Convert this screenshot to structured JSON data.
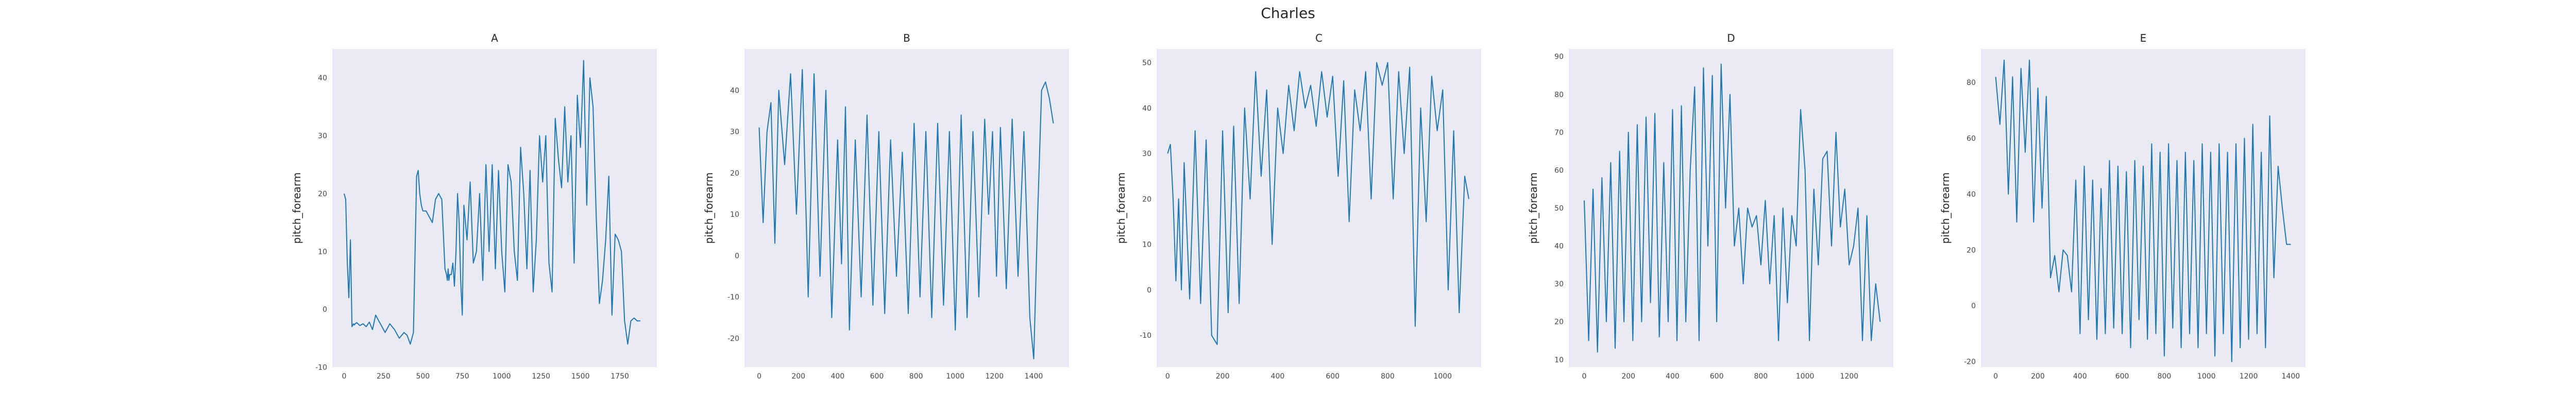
{
  "suptitle": "Charles",
  "colors": {
    "background": "#eaeaf2",
    "line": "#1f77b4",
    "text": "#262626"
  },
  "chart_data": [
    {
      "type": "line",
      "title": "A",
      "xlabel": "",
      "ylabel": "pitch_forearm",
      "xlim": [
        -75,
        1985
      ],
      "ylim": [
        -10,
        45
      ],
      "grid": false,
      "xticks": [
        0,
        250,
        500,
        750,
        1000,
        1250,
        1500,
        1750
      ],
      "yticks": [
        -10,
        0,
        10,
        20,
        30,
        40
      ],
      "series": [
        {
          "x": [
            0,
            10,
            20,
            30,
            40,
            50,
            60,
            65,
            70,
            80,
            100,
            120,
            140,
            160,
            180,
            200,
            230,
            260,
            290,
            320,
            350,
            380,
            400,
            420,
            440,
            460,
            470,
            480,
            490,
            500,
            520,
            540,
            560,
            580,
            600,
            620,
            640,
            650,
            655,
            660,
            665,
            670,
            680,
            690,
            700,
            710,
            720,
            730,
            740,
            750,
            760,
            780,
            800,
            820,
            840,
            860,
            880,
            900,
            920,
            940,
            960,
            980,
            1000,
            1020,
            1040,
            1060,
            1080,
            1100,
            1120,
            1140,
            1160,
            1180,
            1200,
            1220,
            1240,
            1260,
            1280,
            1300,
            1320,
            1340,
            1360,
            1380,
            1400,
            1420,
            1440,
            1460,
            1480,
            1500,
            1520,
            1540,
            1560,
            1580,
            1600,
            1620,
            1640,
            1660,
            1680,
            1700,
            1720,
            1740,
            1760,
            1780,
            1800,
            1820,
            1840,
            1860,
            1880
          ],
          "y": [
            20,
            19,
            8,
            2,
            12,
            -3,
            -2.5,
            -2.7,
            -2.5,
            -2.3,
            -2.8,
            -2.5,
            -3,
            -2.2,
            -3.5,
            -1,
            -2.5,
            -4,
            -2.5,
            -3.5,
            -5,
            -4,
            -4.5,
            -6,
            -4,
            23,
            24,
            20,
            18,
            17,
            17,
            16,
            15,
            19,
            20,
            19,
            7,
            6,
            5,
            7,
            5,
            6,
            6,
            8,
            4,
            10,
            20,
            15,
            5,
            -1,
            18,
            12,
            22,
            8,
            10,
            20,
            5,
            25,
            10,
            25,
            7,
            24,
            10,
            3,
            25,
            22,
            10,
            5,
            28,
            20,
            7,
            24,
            3,
            12,
            30,
            22,
            30,
            8,
            3,
            33,
            26,
            21,
            35,
            22,
            30,
            8,
            37,
            28,
            43,
            18,
            40,
            35,
            16,
            1,
            5,
            12,
            23,
            -1,
            13,
            12,
            10,
            -2,
            -6,
            -2,
            -1.5,
            -2,
            -2
          ]
        }
      ]
    },
    {
      "type": "line",
      "title": "B",
      "xlabel": "",
      "ylabel": "pitch_forearm",
      "xlim": [
        -75,
        1580
      ],
      "ylim": [
        -27,
        50
      ],
      "grid": false,
      "xticks": [
        0,
        200,
        400,
        600,
        800,
        1000,
        1200,
        1400
      ],
      "yticks": [
        -20,
        -10,
        0,
        10,
        20,
        30,
        40
      ],
      "series": [
        {
          "x": [
            0,
            20,
            40,
            60,
            80,
            100,
            130,
            160,
            190,
            220,
            250,
            280,
            310,
            340,
            370,
            400,
            420,
            440,
            460,
            490,
            520,
            550,
            580,
            610,
            640,
            670,
            700,
            730,
            760,
            790,
            820,
            850,
            880,
            910,
            940,
            970,
            1000,
            1030,
            1060,
            1090,
            1120,
            1150,
            1170,
            1190,
            1210,
            1230,
            1260,
            1290,
            1320,
            1350,
            1380,
            1400,
            1420,
            1440,
            1460,
            1480,
            1500
          ],
          "y": [
            31,
            8,
            30,
            37,
            3,
            40,
            22,
            44,
            10,
            45,
            -10,
            44,
            -5,
            40,
            -15,
            28,
            -2,
            36,
            -18,
            28,
            -10,
            34,
            -12,
            30,
            -14,
            28,
            -5,
            25,
            -14,
            32,
            -10,
            30,
            -15,
            32,
            -12,
            30,
            -18,
            34,
            -15,
            30,
            -10,
            33,
            10,
            30,
            -5,
            31,
            -8,
            33,
            -5,
            30,
            -15,
            -25,
            10,
            40,
            42,
            38,
            32
          ]
        }
      ]
    },
    {
      "type": "line",
      "title": "C",
      "xlabel": "",
      "ylabel": "pitch_forearm",
      "xlim": [
        -40,
        1140
      ],
      "ylim": [
        -17,
        53
      ],
      "grid": false,
      "xticks": [
        0,
        200,
        400,
        600,
        800,
        1000
      ],
      "yticks": [
        -10,
        0,
        10,
        20,
        30,
        40,
        50
      ],
      "series": [
        {
          "x": [
            0,
            10,
            20,
            30,
            40,
            50,
            60,
            80,
            100,
            120,
            140,
            160,
            180,
            200,
            220,
            240,
            260,
            280,
            300,
            320,
            340,
            360,
            380,
            400,
            420,
            440,
            460,
            480,
            500,
            520,
            540,
            560,
            580,
            600,
            620,
            640,
            660,
            680,
            700,
            720,
            740,
            760,
            780,
            800,
            820,
            840,
            860,
            880,
            900,
            920,
            940,
            960,
            980,
            1000,
            1020,
            1040,
            1060,
            1080,
            1095
          ],
          "y": [
            30,
            32,
            20,
            2,
            20,
            0,
            28,
            -2,
            35,
            -3,
            33,
            -10,
            -12,
            35,
            -5,
            36,
            -3,
            40,
            20,
            48,
            25,
            44,
            10,
            40,
            30,
            45,
            35,
            48,
            40,
            45,
            36,
            48,
            38,
            47,
            25,
            46,
            15,
            44,
            35,
            48,
            20,
            50,
            45,
            50,
            20,
            48,
            30,
            49,
            -8,
            40,
            15,
            47,
            35,
            44,
            0,
            35,
            -5,
            25,
            20
          ]
        }
      ]
    },
    {
      "type": "line",
      "title": "D",
      "xlabel": "",
      "ylabel": "pitch_forearm",
      "xlim": [
        -70,
        1400
      ],
      "ylim": [
        8,
        92
      ],
      "grid": false,
      "xticks": [
        0,
        200,
        400,
        600,
        800,
        1000,
        1200
      ],
      "yticks": [
        10,
        20,
        30,
        40,
        50,
        60,
        70,
        80,
        90
      ],
      "series": [
        {
          "x": [
            0,
            20,
            40,
            60,
            80,
            100,
            120,
            140,
            160,
            180,
            200,
            220,
            240,
            260,
            280,
            300,
            320,
            340,
            360,
            380,
            400,
            420,
            440,
            460,
            480,
            500,
            520,
            540,
            560,
            580,
            600,
            620,
            640,
            660,
            680,
            700,
            720,
            740,
            760,
            780,
            800,
            820,
            840,
            860,
            880,
            900,
            920,
            940,
            960,
            980,
            1000,
            1020,
            1040,
            1060,
            1080,
            1100,
            1120,
            1140,
            1160,
            1180,
            1200,
            1220,
            1240,
            1260,
            1280,
            1300,
            1320,
            1340
          ],
          "y": [
            52,
            15,
            55,
            12,
            58,
            20,
            62,
            13,
            65,
            20,
            70,
            15,
            72,
            20,
            74,
            25,
            75,
            16,
            62,
            20,
            76,
            15,
            77,
            20,
            60,
            82,
            15,
            87,
            40,
            85,
            20,
            88,
            50,
            80,
            40,
            50,
            30,
            50,
            45,
            48,
            35,
            52,
            30,
            48,
            15,
            50,
            25,
            48,
            40,
            76,
            60,
            15,
            55,
            35,
            63,
            65,
            40,
            70,
            45,
            55,
            35,
            40,
            50,
            15,
            48,
            15,
            30,
            20
          ]
        }
      ]
    },
    {
      "type": "line",
      "title": "E",
      "xlabel": "",
      "ylabel": "pitch_forearm",
      "xlim": [
        -70,
        1470
      ],
      "ylim": [
        -22,
        92
      ],
      "grid": false,
      "xticks": [
        0,
        200,
        400,
        600,
        800,
        1000,
        1200,
        1400
      ],
      "yticks": [
        -20,
        0,
        20,
        40,
        60,
        80
      ],
      "series": [
        {
          "x": [
            0,
            20,
            40,
            60,
            80,
            100,
            120,
            140,
            160,
            180,
            200,
            220,
            240,
            260,
            280,
            300,
            320,
            340,
            360,
            380,
            400,
            420,
            440,
            460,
            480,
            500,
            520,
            540,
            560,
            580,
            600,
            620,
            640,
            660,
            680,
            700,
            720,
            740,
            760,
            780,
            800,
            820,
            840,
            860,
            880,
            900,
            920,
            940,
            960,
            980,
            1000,
            1020,
            1040,
            1060,
            1080,
            1100,
            1120,
            1140,
            1160,
            1180,
            1200,
            1220,
            1240,
            1260,
            1280,
            1300,
            1320,
            1340,
            1360,
            1380,
            1400
          ],
          "y": [
            82,
            65,
            88,
            40,
            82,
            30,
            85,
            55,
            88,
            30,
            78,
            35,
            75,
            10,
            18,
            5,
            20,
            18,
            5,
            45,
            -10,
            50,
            -5,
            45,
            -12,
            42,
            -10,
            52,
            -8,
            50,
            -10,
            48,
            -15,
            52,
            -5,
            50,
            -12,
            58,
            -10,
            55,
            -18,
            58,
            -8,
            52,
            -15,
            55,
            -10,
            52,
            -15,
            58,
            -10,
            55,
            -18,
            58,
            -10,
            55,
            -20,
            58,
            -15,
            60,
            -12,
            65,
            -10,
            55,
            -15,
            68,
            10,
            50,
            35,
            22,
            22
          ]
        }
      ]
    }
  ]
}
